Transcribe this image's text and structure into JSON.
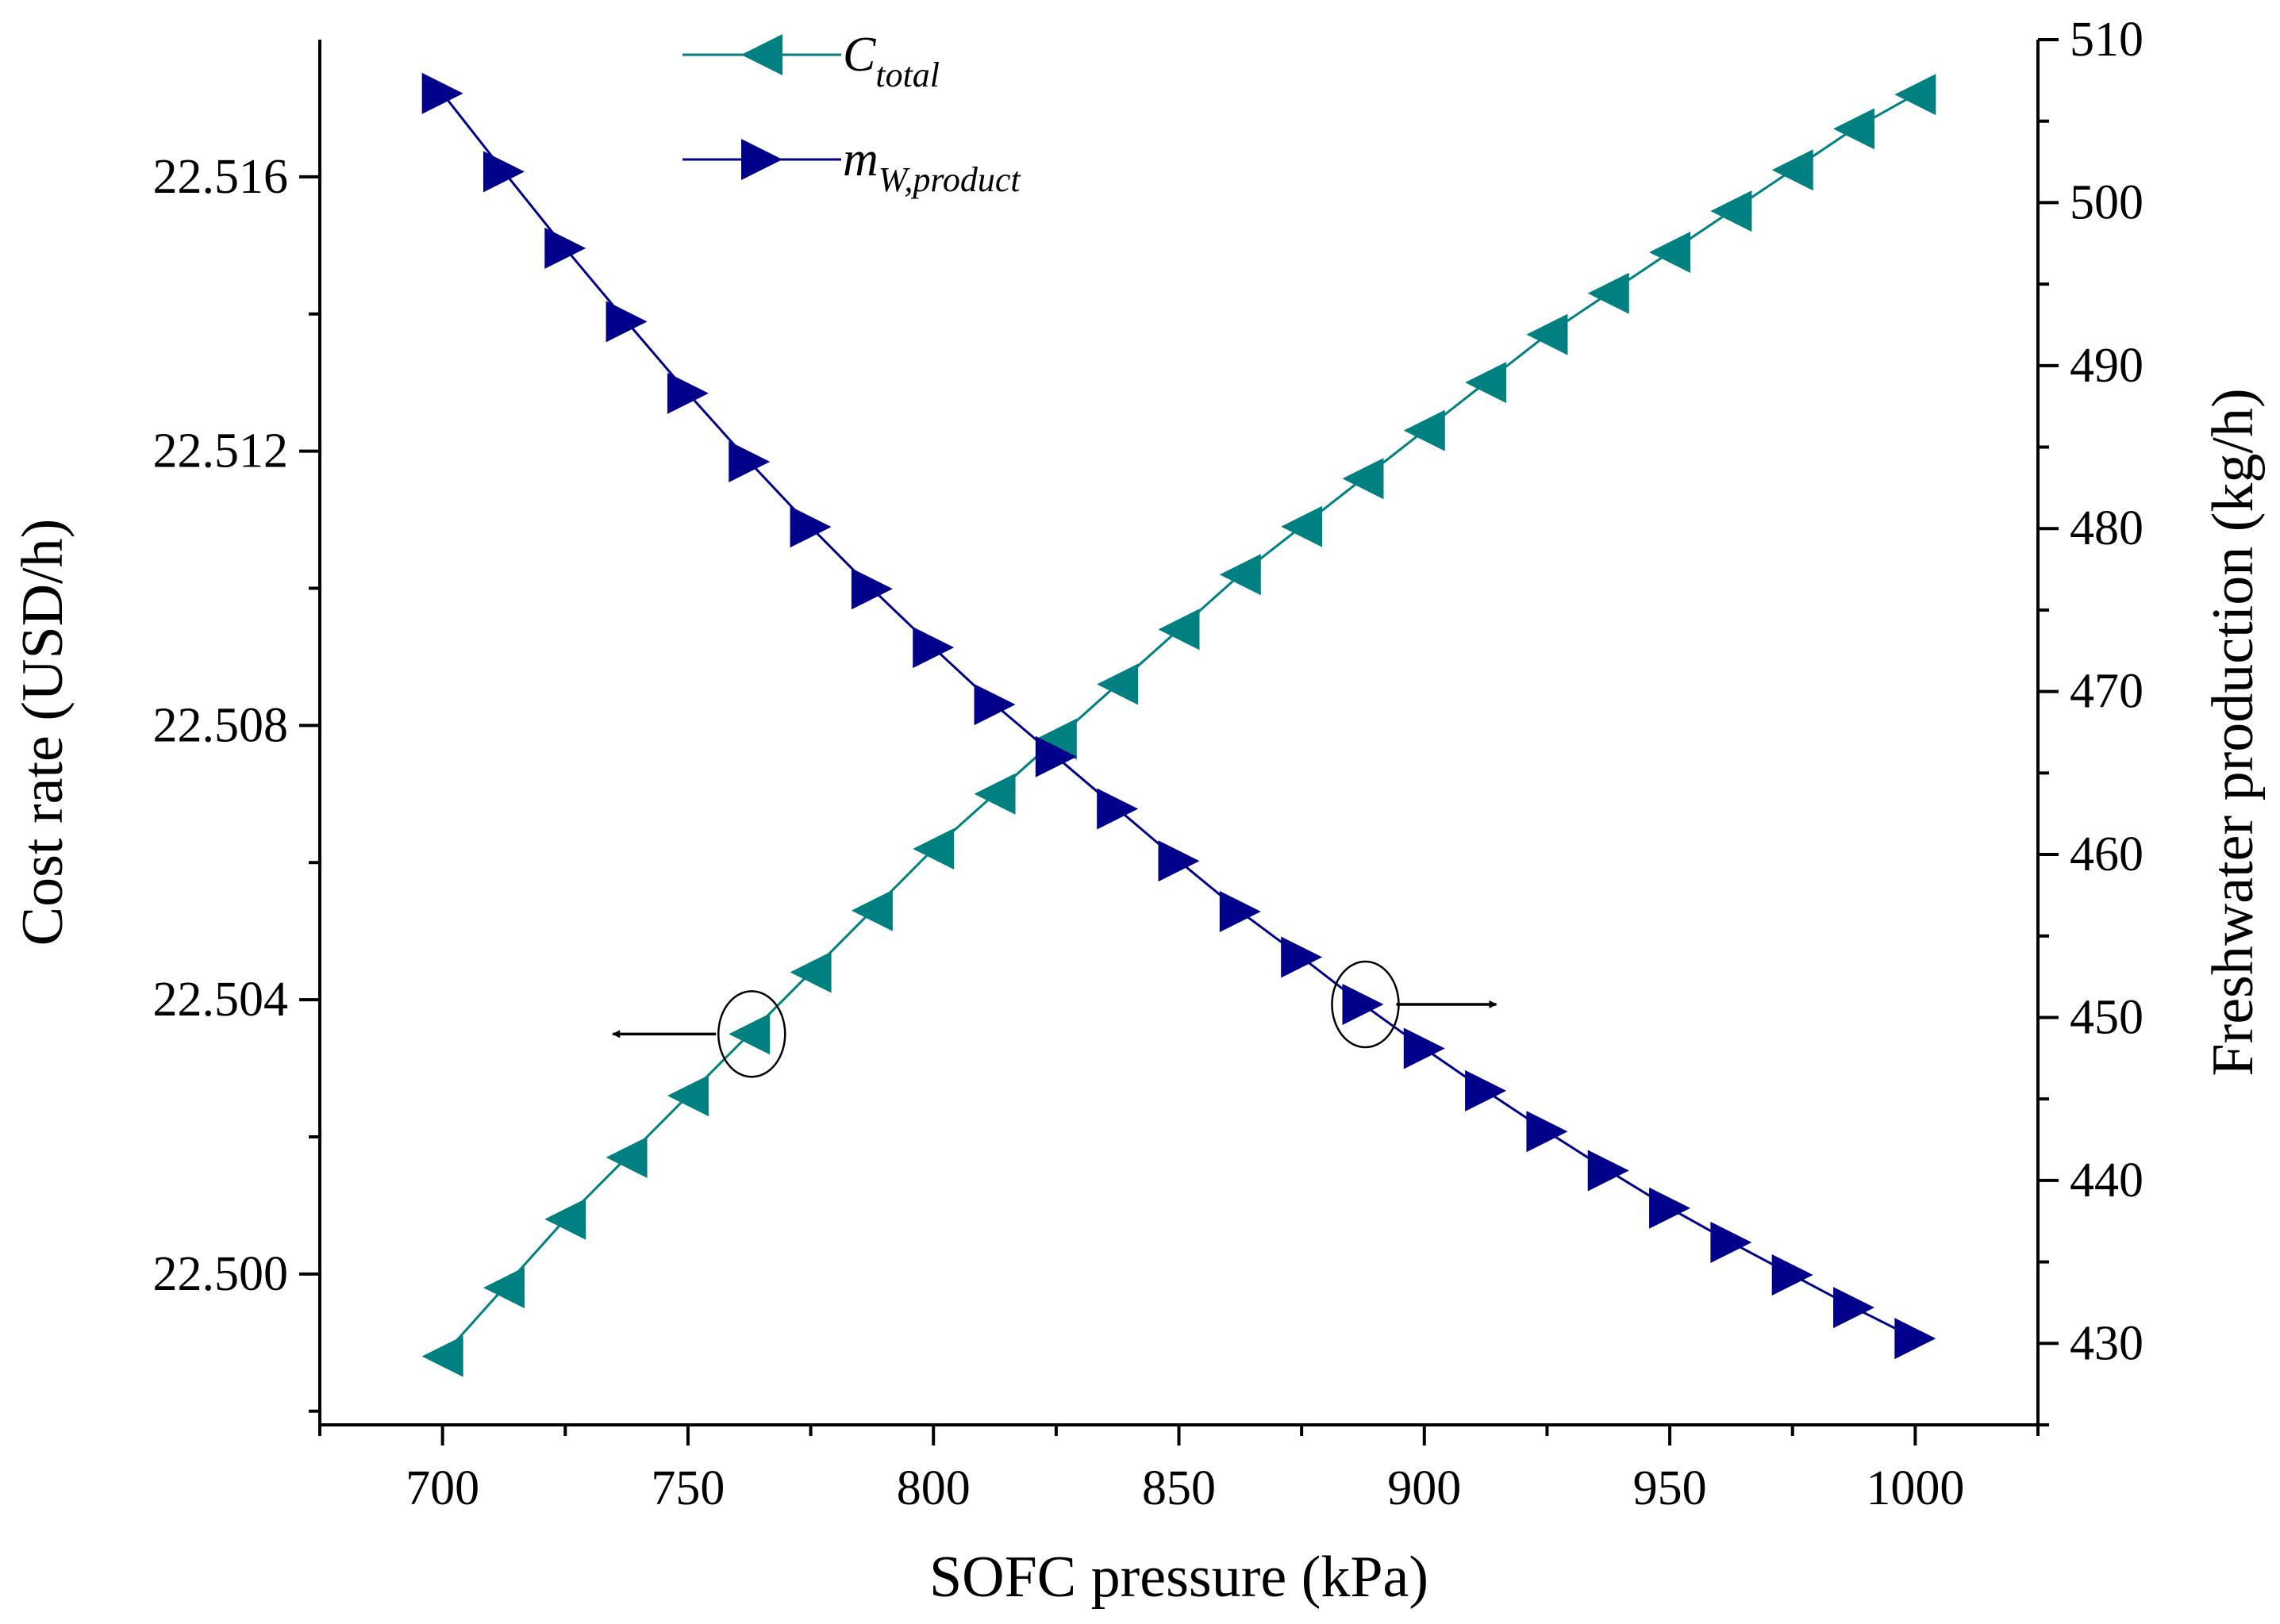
{
  "chart_data": {
    "type": "line",
    "xlabel": "SOFC pressure (kPa)",
    "ylabel_left": "Cost rate (USD/h)",
    "ylabel_right": "Freshwater production (kg/h)",
    "xlim": [
      675,
      1025
    ],
    "ylim_left": [
      22.4978,
      22.518
    ],
    "ylim_right": [
      425,
      510
    ],
    "x_ticks": [
      "700",
      "750",
      "800",
      "850",
      "900",
      "950",
      "1000"
    ],
    "y_left_ticks": [
      "22.500",
      "22.504",
      "22.508",
      "22.512",
      "22.516"
    ],
    "y_right_ticks": [
      "430",
      "440",
      "450",
      "460",
      "470",
      "480",
      "490",
      "500",
      "510"
    ],
    "legend": [
      {
        "base": "C",
        "sub": "total"
      },
      {
        "base": "m",
        "sub": "W,product"
      }
    ],
    "colors": {
      "c_total": "#008080",
      "m_water": "#00008B"
    },
    "x": [
      700,
      712.5,
      725,
      737.5,
      750,
      762.5,
      775,
      787.5,
      800,
      812.5,
      825,
      837.5,
      850,
      862.5,
      875,
      887.5,
      900,
      912.5,
      925,
      937.5,
      950,
      962.5,
      975,
      987.5,
      1000
    ],
    "series": [
      {
        "name": "C_total",
        "axis": "left",
        "marker": "triangle-left",
        "values": [
          22.4988,
          22.4998,
          22.5008,
          22.5017,
          22.5026,
          22.5035,
          22.5044,
          22.5053,
          22.5062,
          22.507,
          22.5078,
          22.5086,
          22.5094,
          22.5102,
          22.5109,
          22.5116,
          22.5123,
          22.513,
          22.5137,
          22.5143,
          22.5149,
          22.5155,
          22.5161,
          22.5167,
          22.5172
        ]
      },
      {
        "name": "m_W,product",
        "axis": "right",
        "marker": "triangle-right",
        "values": [
          506.7,
          501.9,
          497.2,
          492.7,
          488.3,
          484.1,
          480.1,
          476.3,
          472.7,
          469.2,
          466.0,
          462.8,
          459.6,
          456.5,
          453.7,
          450.8,
          448.1,
          445.5,
          443.0,
          440.6,
          438.3,
          436.2,
          434.2,
          432.2,
          430.3
        ]
      }
    ],
    "annotations": [
      {
        "type": "ellipse-arrow",
        "series": "C_total",
        "at_x": 762.5,
        "direction": "left"
      },
      {
        "type": "ellipse-arrow",
        "series": "m_W,product",
        "at_x": 887.5,
        "direction": "right"
      }
    ]
  }
}
